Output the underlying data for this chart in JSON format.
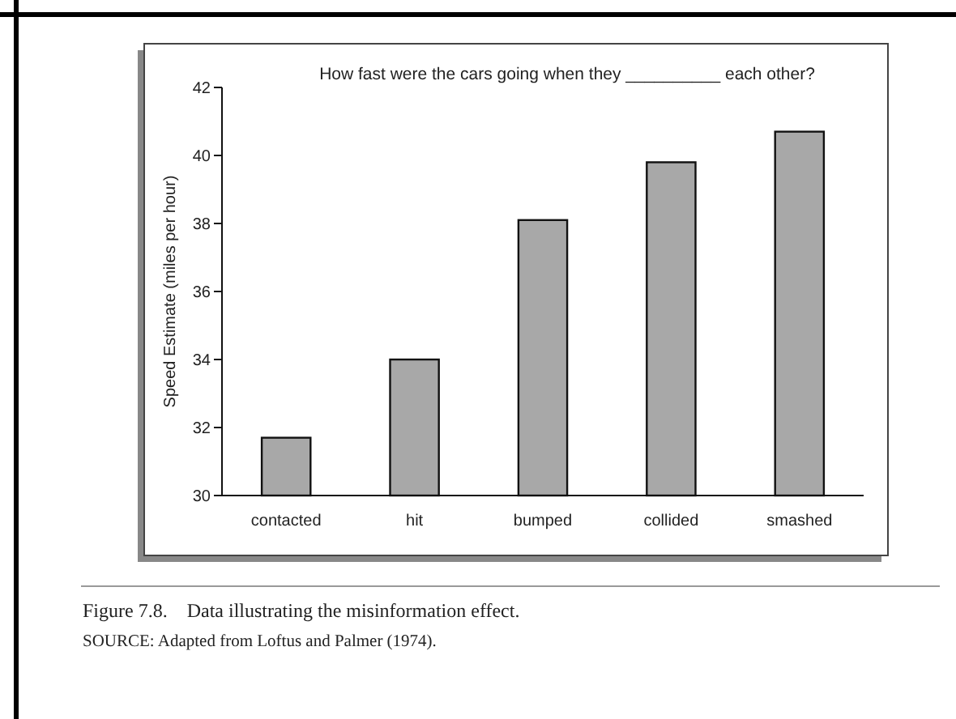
{
  "chart_data": {
    "type": "bar",
    "title": "How fast were the cars going when they __________ each other?",
    "ylabel": "Speed Estimate (miles per hour)",
    "categories": [
      "contacted",
      "hit",
      "bumped",
      "collided",
      "smashed"
    ],
    "values": [
      31.7,
      34.0,
      38.1,
      39.8,
      40.7
    ],
    "color": "#a8a8a8",
    "ylim": [
      30,
      42
    ],
    "yticks": [
      30,
      32,
      34,
      36,
      38,
      40,
      42
    ],
    "grid": false,
    "annotations": [
      "Figure 7.8.    Data illustrating the misinformation effect.",
      "SOURCE: Adapted from Loftus and Palmer (1974)."
    ]
  }
}
